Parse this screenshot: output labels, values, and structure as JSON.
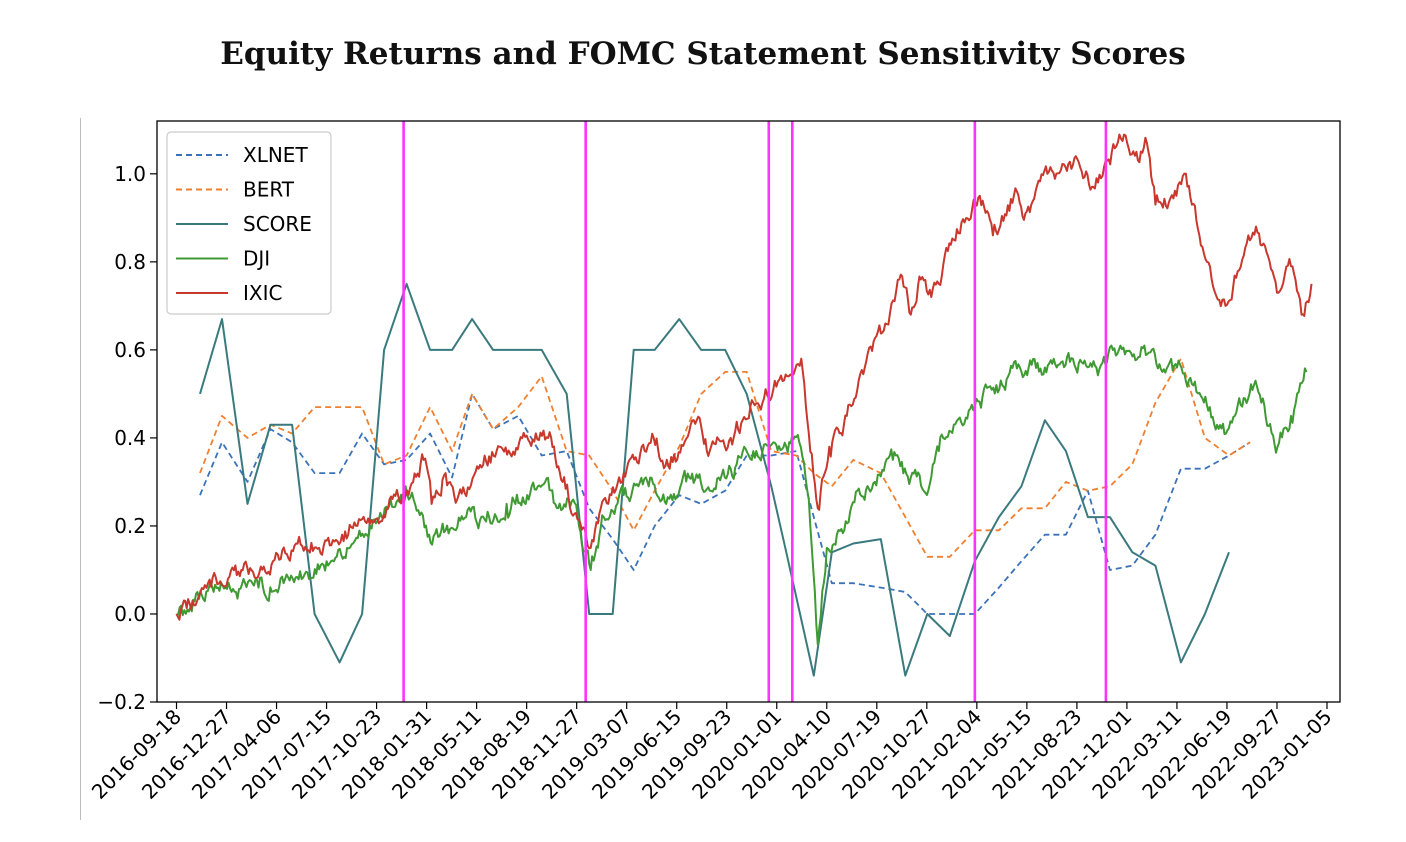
{
  "chart_data": {
    "type": "line",
    "title": "Equity Returns and FOMC Statement Sensitivity Scores",
    "xlabel": "",
    "ylabel": "",
    "xlim": [
      "2016-08-10",
      "2023-01-31"
    ],
    "ylim": [
      -0.2,
      1.12
    ],
    "grid": false,
    "legend_position": "top-left",
    "x_ticks": [
      "2016-09-18",
      "2016-12-27",
      "2017-04-06",
      "2017-07-15",
      "2017-10-23",
      "2018-01-31",
      "2018-05-11",
      "2018-08-19",
      "2018-11-27",
      "2019-03-07",
      "2019-06-15",
      "2019-09-23",
      "2020-01-01",
      "2020-04-10",
      "2020-07-19",
      "2020-10-27",
      "2021-02-04",
      "2021-05-15",
      "2021-08-23",
      "2021-12-01",
      "2022-03-11",
      "2022-06-19",
      "2022-09-27",
      "2023-01-05"
    ],
    "y_ticks": [
      "-0.2",
      "0.0",
      "0.2",
      "0.4",
      "0.6",
      "0.8",
      "1.0"
    ],
    "vertical_lines": {
      "color": "#ff33ff",
      "dates": [
        "2017-12-16",
        "2018-12-15",
        "2019-12-16",
        "2020-02-01",
        "2021-01-31",
        "2021-10-20"
      ]
    },
    "series": [
      {
        "name": "XLNET",
        "color": "#3b72b8",
        "style": "dashed",
        "points": [
          [
            "2016-11-04",
            0.27
          ],
          [
            "2016-12-18",
            0.39
          ],
          [
            "2017-02-07",
            0.3
          ],
          [
            "2017-03-25",
            0.42
          ],
          [
            "2017-05-07",
            0.39
          ],
          [
            "2017-06-21",
            0.32
          ],
          [
            "2017-08-10",
            0.32
          ],
          [
            "2017-09-24",
            0.41
          ],
          [
            "2017-11-07",
            0.34
          ],
          [
            "2017-12-22",
            0.35
          ],
          [
            "2018-02-07",
            0.41
          ],
          [
            "2018-03-23",
            0.31
          ],
          [
            "2018-05-02",
            0.5
          ],
          [
            "2018-06-13",
            0.42
          ],
          [
            "2018-08-02",
            0.45
          ],
          [
            "2018-09-18",
            0.36
          ],
          [
            "2018-11-07",
            0.37
          ],
          [
            "2018-12-22",
            0.24
          ],
          [
            "2019-02-07",
            0.17
          ],
          [
            "2019-03-21",
            0.1
          ],
          [
            "2019-05-02",
            0.2
          ],
          [
            "2019-06-20",
            0.27
          ],
          [
            "2019-08-03",
            0.25
          ],
          [
            "2019-09-20",
            0.28
          ],
          [
            "2019-11-02",
            0.36
          ],
          [
            "2019-12-21",
            0.36
          ],
          [
            "2020-02-09",
            0.37
          ],
          [
            "2020-03-15",
            0.22
          ],
          [
            "2020-04-20",
            0.07
          ],
          [
            "2020-06-02",
            0.07
          ],
          [
            "2020-07-27",
            0.06
          ],
          [
            "2020-09-14",
            0.05
          ],
          [
            "2020-10-28",
            0.0
          ],
          [
            "2020-12-12",
            0.0
          ],
          [
            "2021-01-31",
            0.0
          ],
          [
            "2021-03-20",
            0.06
          ],
          [
            "2021-05-04",
            0.12
          ],
          [
            "2021-06-20",
            0.18
          ],
          [
            "2021-08-01",
            0.18
          ],
          [
            "2021-09-14",
            0.28
          ],
          [
            "2021-10-28",
            0.1
          ],
          [
            "2021-12-12",
            0.11
          ],
          [
            "2022-01-27",
            0.18
          ],
          [
            "2022-03-19",
            0.33
          ],
          [
            "2022-05-06",
            0.33
          ],
          [
            "2022-06-23",
            0.36
          ],
          [
            "2022-08-04",
            0.39
          ]
        ]
      },
      {
        "name": "BERT",
        "color": "#f08030",
        "style": "dashed",
        "points": [
          [
            "2016-11-04",
            0.32
          ],
          [
            "2016-12-18",
            0.45
          ],
          [
            "2017-02-07",
            0.4
          ],
          [
            "2017-03-25",
            0.43
          ],
          [
            "2017-05-07",
            0.41
          ],
          [
            "2017-06-21",
            0.47
          ],
          [
            "2017-08-10",
            0.47
          ],
          [
            "2017-09-24",
            0.47
          ],
          [
            "2017-11-07",
            0.34
          ],
          [
            "2017-12-22",
            0.36
          ],
          [
            "2018-02-07",
            0.47
          ],
          [
            "2018-03-23",
            0.37
          ],
          [
            "2018-05-02",
            0.5
          ],
          [
            "2018-06-13",
            0.42
          ],
          [
            "2018-08-02",
            0.47
          ],
          [
            "2018-09-18",
            0.54
          ],
          [
            "2018-11-07",
            0.37
          ],
          [
            "2018-12-22",
            0.36
          ],
          [
            "2019-02-07",
            0.28
          ],
          [
            "2019-03-21",
            0.19
          ],
          [
            "2019-05-02",
            0.28
          ],
          [
            "2019-06-20",
            0.38
          ],
          [
            "2019-08-03",
            0.5
          ],
          [
            "2019-09-20",
            0.55
          ],
          [
            "2019-11-02",
            0.55
          ],
          [
            "2019-12-21",
            0.37
          ],
          [
            "2020-02-09",
            0.36
          ],
          [
            "2020-03-15",
            0.32
          ],
          [
            "2020-04-20",
            0.29
          ],
          [
            "2020-06-02",
            0.35
          ],
          [
            "2020-07-27",
            0.32
          ],
          [
            "2020-09-14",
            0.22
          ],
          [
            "2020-10-28",
            0.13
          ],
          [
            "2020-12-12",
            0.13
          ],
          [
            "2021-01-31",
            0.19
          ],
          [
            "2021-03-20",
            0.19
          ],
          [
            "2021-05-04",
            0.24
          ],
          [
            "2021-06-20",
            0.24
          ],
          [
            "2021-08-01",
            0.3
          ],
          [
            "2021-09-14",
            0.28
          ],
          [
            "2021-10-28",
            0.29
          ],
          [
            "2021-12-12",
            0.34
          ],
          [
            "2022-01-27",
            0.48
          ],
          [
            "2022-03-19",
            0.58
          ],
          [
            "2022-05-06",
            0.4
          ],
          [
            "2022-06-23",
            0.36
          ],
          [
            "2022-08-04",
            0.39
          ]
        ]
      },
      {
        "name": "SCORE",
        "color": "#3a7a7e",
        "style": "solid",
        "points": [
          [
            "2016-11-04",
            0.5
          ],
          [
            "2016-12-18",
            0.67
          ],
          [
            "2017-02-07",
            0.25
          ],
          [
            "2017-03-25",
            0.43
          ],
          [
            "2017-05-07",
            0.43
          ],
          [
            "2017-06-21",
            0.0
          ],
          [
            "2017-08-10",
            -0.11
          ],
          [
            "2017-09-24",
            0.0
          ],
          [
            "2017-11-07",
            0.6
          ],
          [
            "2017-12-22",
            0.75
          ],
          [
            "2018-02-07",
            0.6
          ],
          [
            "2018-03-23",
            0.6
          ],
          [
            "2018-05-02",
            0.67
          ],
          [
            "2018-06-13",
            0.6
          ],
          [
            "2018-08-02",
            0.6
          ],
          [
            "2018-09-18",
            0.6
          ],
          [
            "2018-11-07",
            0.5
          ],
          [
            "2018-12-22",
            0.0
          ],
          [
            "2019-02-07",
            0.0
          ],
          [
            "2019-03-21",
            0.6
          ],
          [
            "2019-05-02",
            0.6
          ],
          [
            "2019-06-20",
            0.67
          ],
          [
            "2019-08-03",
            0.6
          ],
          [
            "2019-09-20",
            0.6
          ],
          [
            "2019-11-02",
            0.5
          ],
          [
            "2019-12-21",
            0.29
          ],
          [
            "2020-01-20",
            0.14
          ],
          [
            "2020-03-15",
            -0.14
          ],
          [
            "2020-04-20",
            0.14
          ],
          [
            "2020-06-02",
            0.16
          ],
          [
            "2020-07-27",
            0.17
          ],
          [
            "2020-09-14",
            -0.14
          ],
          [
            "2020-10-28",
            0.0
          ],
          [
            "2020-12-12",
            -0.05
          ],
          [
            "2021-01-31",
            0.12
          ],
          [
            "2021-03-20",
            0.22
          ],
          [
            "2021-05-04",
            0.29
          ],
          [
            "2021-06-20",
            0.44
          ],
          [
            "2021-08-01",
            0.37
          ],
          [
            "2021-09-14",
            0.22
          ],
          [
            "2021-10-28",
            0.22
          ],
          [
            "2021-12-12",
            0.14
          ],
          [
            "2022-01-27",
            0.11
          ],
          [
            "2022-03-19",
            -0.11
          ],
          [
            "2022-05-06",
            0.0
          ],
          [
            "2022-06-23",
            0.14
          ]
        ]
      },
      {
        "name": "DJI",
        "color": "#3f9a33",
        "style": "solid",
        "points": [
          [
            "2016-09-18",
            0.0
          ],
          [
            "2016-10-10",
            0.01
          ],
          [
            "2016-10-30",
            0.05
          ],
          [
            "2016-12-10",
            0.06
          ],
          [
            "2017-01-15",
            0.05
          ],
          [
            "2017-03-01",
            0.06
          ],
          [
            "2017-04-20",
            0.07
          ],
          [
            "2017-06-01",
            0.09
          ],
          [
            "2017-07-15",
            0.12
          ],
          [
            "2017-08-25",
            0.15
          ],
          [
            "2017-10-10",
            0.2
          ],
          [
            "2017-11-20",
            0.26
          ],
          [
            "2017-12-20",
            0.29
          ],
          [
            "2018-01-05",
            0.26
          ],
          [
            "2018-02-05",
            0.18
          ],
          [
            "2018-03-10",
            0.19
          ],
          [
            "2018-04-20",
            0.22
          ],
          [
            "2018-05-30",
            0.21
          ],
          [
            "2018-07-10",
            0.25
          ],
          [
            "2018-08-20",
            0.27
          ],
          [
            "2018-09-25",
            0.3
          ],
          [
            "2018-10-15",
            0.25
          ],
          [
            "2018-11-20",
            0.26
          ],
          [
            "2018-12-25",
            0.1
          ],
          [
            "2019-01-20",
            0.22
          ],
          [
            "2019-03-01",
            0.27
          ],
          [
            "2019-04-20",
            0.29
          ],
          [
            "2019-05-25",
            0.25
          ],
          [
            "2019-07-10",
            0.31
          ],
          [
            "2019-08-20",
            0.28
          ],
          [
            "2019-10-01",
            0.33
          ],
          [
            "2019-11-15",
            0.37
          ],
          [
            "2019-12-25",
            0.39
          ],
          [
            "2020-01-20",
            0.38
          ],
          [
            "2020-02-15",
            0.39
          ],
          [
            "2020-03-05",
            0.26
          ],
          [
            "2020-03-23",
            -0.07
          ],
          [
            "2020-04-10",
            0.15
          ],
          [
            "2020-05-15",
            0.19
          ],
          [
            "2020-06-10",
            0.28
          ],
          [
            "2020-07-15",
            0.3
          ],
          [
            "2020-08-20",
            0.35
          ],
          [
            "2020-09-25",
            0.31
          ],
          [
            "2020-10-30",
            0.28
          ],
          [
            "2020-11-20",
            0.37
          ],
          [
            "2020-12-20",
            0.43
          ],
          [
            "2021-01-31",
            0.47
          ],
          [
            "2021-03-15",
            0.52
          ],
          [
            "2021-05-01",
            0.56
          ],
          [
            "2021-06-20",
            0.56
          ],
          [
            "2021-08-15",
            0.58
          ],
          [
            "2021-10-01",
            0.56
          ],
          [
            "2021-11-15",
            0.6
          ],
          [
            "2021-12-15",
            0.59
          ],
          [
            "2022-01-05",
            0.61
          ],
          [
            "2022-02-10",
            0.55
          ],
          [
            "2022-03-20",
            0.56
          ],
          [
            "2022-05-01",
            0.49
          ],
          [
            "2022-06-17",
            0.41
          ],
          [
            "2022-08-15",
            0.53
          ],
          [
            "2022-09-28",
            0.38
          ],
          [
            "2022-10-25",
            0.45
          ],
          [
            "2022-11-25",
            0.55
          ]
        ]
      },
      {
        "name": "IXIC",
        "color": "#c8382d",
        "style": "solid",
        "points": [
          [
            "2016-09-18",
            0.0
          ],
          [
            "2016-10-20",
            0.03
          ],
          [
            "2016-11-20",
            0.07
          ],
          [
            "2016-12-30",
            0.08
          ],
          [
            "2017-02-15",
            0.1
          ],
          [
            "2017-03-30",
            0.12
          ],
          [
            "2017-05-15",
            0.16
          ],
          [
            "2017-06-30",
            0.15
          ],
          [
            "2017-08-15",
            0.18
          ],
          [
            "2017-09-30",
            0.21
          ],
          [
            "2017-11-15",
            0.24
          ],
          [
            "2017-12-20",
            0.27
          ],
          [
            "2018-01-25",
            0.35
          ],
          [
            "2018-02-10",
            0.25
          ],
          [
            "2018-03-10",
            0.32
          ],
          [
            "2018-04-05",
            0.27
          ],
          [
            "2018-05-15",
            0.33
          ],
          [
            "2018-06-20",
            0.37
          ],
          [
            "2018-08-25",
            0.39
          ],
          [
            "2018-10-01",
            0.4
          ],
          [
            "2018-10-30",
            0.3
          ],
          [
            "2018-12-25",
            0.15
          ],
          [
            "2019-01-20",
            0.26
          ],
          [
            "2019-03-01",
            0.32
          ],
          [
            "2019-04-30",
            0.4
          ],
          [
            "2019-06-01",
            0.33
          ],
          [
            "2019-07-25",
            0.44
          ],
          [
            "2019-08-20",
            0.37
          ],
          [
            "2019-10-01",
            0.4
          ],
          [
            "2019-11-15",
            0.48
          ],
          [
            "2019-12-25",
            0.51
          ],
          [
            "2020-01-25",
            0.54
          ],
          [
            "2020-02-19",
            0.58
          ],
          [
            "2020-03-23",
            0.24
          ],
          [
            "2020-04-15",
            0.38
          ],
          [
            "2020-05-20",
            0.45
          ],
          [
            "2020-06-25",
            0.56
          ],
          [
            "2020-08-05",
            0.66
          ],
          [
            "2020-09-02",
            0.76
          ],
          [
            "2020-09-25",
            0.68
          ],
          [
            "2020-10-15",
            0.76
          ],
          [
            "2020-11-05",
            0.72
          ],
          [
            "2020-12-20",
            0.85
          ],
          [
            "2021-02-10",
            0.95
          ],
          [
            "2021-03-08",
            0.86
          ],
          [
            "2021-04-25",
            0.96
          ],
          [
            "2021-05-12",
            0.91
          ],
          [
            "2021-06-25",
            1.0
          ],
          [
            "2021-08-15",
            1.02
          ],
          [
            "2021-09-25",
            0.97
          ],
          [
            "2021-11-19",
            1.08
          ],
          [
            "2021-12-20",
            1.05
          ],
          [
            "2022-01-10",
            1.07
          ],
          [
            "2022-01-27",
            0.93
          ],
          [
            "2022-03-10",
            0.95
          ],
          [
            "2022-03-29",
            1.0
          ],
          [
            "2022-05-10",
            0.8
          ],
          [
            "2022-06-16",
            0.7
          ],
          [
            "2022-08-16",
            0.88
          ],
          [
            "2022-09-30",
            0.73
          ],
          [
            "2022-10-25",
            0.79
          ],
          [
            "2022-11-15",
            0.68
          ],
          [
            "2022-12-05",
            0.75
          ]
        ]
      }
    ]
  }
}
